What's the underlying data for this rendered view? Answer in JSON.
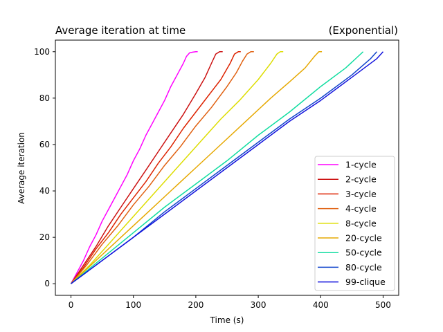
{
  "chart_data": {
    "type": "line",
    "title": "Average iteration at time",
    "title_right": "(Exponential)",
    "xlabel": "Time (s)",
    "ylabel": "Average iteration",
    "xlim": [
      -25,
      525
    ],
    "ylim": [
      -5,
      105
    ],
    "xticks": [
      0,
      100,
      200,
      300,
      400,
      500
    ],
    "yticks": [
      0,
      20,
      40,
      60,
      80,
      100
    ],
    "grid": false,
    "legend_position": "lower-right",
    "series": [
      {
        "name": "1-cycle",
        "color": "#ff00ff",
        "x": [
          0,
          10,
          20,
          30,
          40,
          50,
          60,
          70,
          80,
          90,
          100,
          110,
          120,
          130,
          140,
          150,
          160,
          170,
          180,
          185,
          190,
          195,
          200,
          203
        ],
        "y": [
          0,
          5,
          10,
          16,
          21,
          27,
          32,
          37,
          42,
          47,
          53,
          58,
          64,
          69,
          74,
          79,
          85,
          90,
          95,
          98,
          99.5,
          99.8,
          100,
          100
        ]
      },
      {
        "name": "2-cycle",
        "color": "#cc1111",
        "x": [
          0,
          20,
          40,
          60,
          80,
          100,
          120,
          140,
          160,
          180,
          200,
          215,
          225,
          232,
          238,
          243
        ],
        "y": [
          0,
          8,
          16,
          25,
          33,
          41,
          49,
          57,
          65,
          73,
          82,
          89,
          95,
          99,
          100,
          100
        ]
      },
      {
        "name": "3-cycle",
        "color": "#dd2200",
        "x": [
          0,
          20,
          40,
          60,
          80,
          100,
          120,
          140,
          160,
          180,
          200,
          220,
          240,
          255,
          262,
          268,
          272
        ],
        "y": [
          0,
          7,
          15,
          22,
          30,
          37,
          44,
          52,
          59,
          67,
          74,
          81,
          88,
          95,
          99,
          100,
          100
        ]
      },
      {
        "name": "4-cycle",
        "color": "#e06010",
        "x": [
          0,
          25,
          50,
          75,
          100,
          125,
          150,
          175,
          200,
          225,
          250,
          265,
          275,
          282,
          288,
          293
        ],
        "y": [
          0,
          8,
          17,
          25,
          34,
          42,
          51,
          59,
          68,
          76,
          85,
          91,
          96,
          99,
          100,
          100
        ]
      },
      {
        "name": "8-cycle",
        "color": "#dddd00",
        "x": [
          0,
          30,
          60,
          90,
          120,
          150,
          180,
          210,
          240,
          270,
          300,
          320,
          330,
          335,
          340
        ],
        "y": [
          0,
          8,
          17,
          26,
          35,
          44,
          53,
          62,
          71,
          79,
          88,
          95,
          99,
          100,
          100
        ]
      },
      {
        "name": "20-cycle",
        "color": "#e6a800",
        "x": [
          0,
          40,
          80,
          120,
          160,
          200,
          240,
          280,
          320,
          350,
          375,
          390,
          397,
          402
        ],
        "y": [
          0,
          10,
          20,
          30,
          40,
          50,
          60,
          70,
          80,
          87,
          93,
          98,
          100,
          100
        ]
      },
      {
        "name": "50-cycle",
        "color": "#10dda0",
        "x": [
          0,
          50,
          100,
          150,
          200,
          250,
          300,
          350,
          400,
          440,
          460,
          468
        ],
        "y": [
          0,
          11,
          22,
          33,
          43,
          53,
          64,
          74,
          85,
          93,
          98,
          100
        ]
      },
      {
        "name": "80-cycle",
        "color": "#1144cc",
        "x": [
          0,
          50,
          100,
          150,
          200,
          250,
          300,
          350,
          400,
          450,
          480,
          490
        ],
        "y": [
          0,
          10,
          20,
          31,
          41,
          51,
          61,
          71,
          80,
          90,
          97,
          100
        ]
      },
      {
        "name": "99-clique",
        "color": "#1111dd",
        "x": [
          0,
          50,
          100,
          150,
          200,
          250,
          300,
          350,
          400,
          450,
          490,
          500
        ],
        "y": [
          0,
          10,
          20,
          30,
          40,
          50,
          60,
          70,
          79,
          89,
          97,
          100
        ]
      }
    ]
  }
}
